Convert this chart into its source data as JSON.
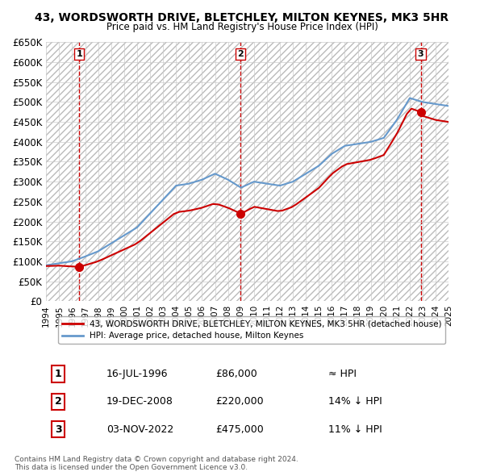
{
  "title": "43, WORDSWORTH DRIVE, BLETCHLEY, MILTON KEYNES, MK3 5HR",
  "subtitle": "Price paid vs. HM Land Registry's House Price Index (HPI)",
  "ylabel_ticks": [
    "£0",
    "£50K",
    "£100K",
    "£150K",
    "£200K",
    "£250K",
    "£300K",
    "£350K",
    "£400K",
    "£450K",
    "£500K",
    "£550K",
    "£600K",
    "£650K"
  ],
  "ytick_values": [
    0,
    50000,
    100000,
    150000,
    200000,
    250000,
    300000,
    350000,
    400000,
    450000,
    500000,
    550000,
    600000,
    650000
  ],
  "xmin": 1994,
  "xmax": 2025,
  "ymin": 0,
  "ymax": 650000,
  "sale_dates": [
    1996.54,
    2008.97,
    2022.84
  ],
  "sale_prices": [
    86000,
    220000,
    475000
  ],
  "sale_labels": [
    "1",
    "2",
    "3"
  ],
  "vline_color": "#cc0000",
  "sale_dot_color": "#cc0000",
  "hpi_line_color": "#6699cc",
  "price_line_color": "#cc0000",
  "legend_entries": [
    "43, WORDSWORTH DRIVE, BLETCHLEY, MILTON KEYNES, MK3 5HR (detached house)",
    "HPI: Average price, detached house, Milton Keynes"
  ],
  "table_rows": [
    [
      "1",
      "16-JUL-1996",
      "£86,000",
      "≈ HPI"
    ],
    [
      "2",
      "19-DEC-2008",
      "£220,000",
      "14% ↓ HPI"
    ],
    [
      "3",
      "03-NOV-2022",
      "£475,000",
      "11% ↓ HPI"
    ]
  ],
  "footer": "Contains HM Land Registry data © Crown copyright and database right 2024.\nThis data is licensed under the Open Government Licence v3.0.",
  "background_color": "#ffffff",
  "grid_color": "#cccccc",
  "hatch_color": "#dddddd"
}
